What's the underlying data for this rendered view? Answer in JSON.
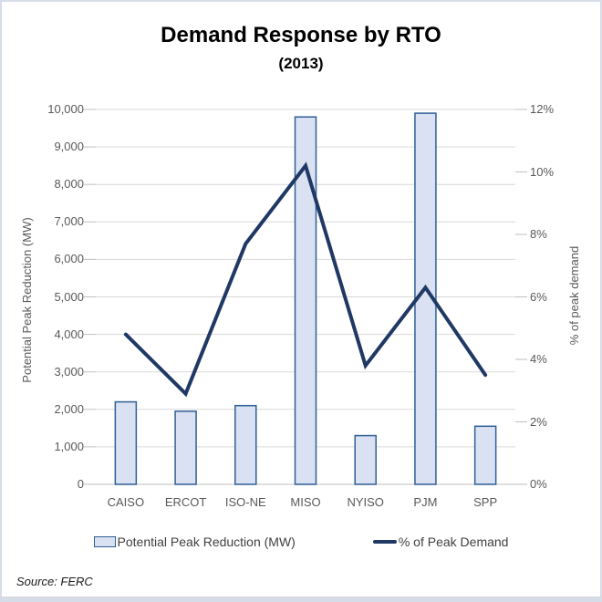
{
  "page": {
    "title": "Demand Response by RTO",
    "subtitle": "(2013)",
    "source": "Source: FERC"
  },
  "chart_data": {
    "type": "combo-bar-line",
    "categories": [
      "CAISO",
      "ERCOT",
      "ISO-NE",
      "MISO",
      "NYISO",
      "PJM",
      "SPP"
    ],
    "series": [
      {
        "name": "Potential Peak Reduction (MW)",
        "type": "bar",
        "axis": "left",
        "values": [
          2200,
          1950,
          2100,
          9800,
          1300,
          9900,
          1550
        ]
      },
      {
        "name": "% of Peak Demand",
        "type": "line",
        "axis": "right",
        "values": [
          4.8,
          2.9,
          7.7,
          10.2,
          3.8,
          6.3,
          3.5
        ]
      }
    ],
    "left_axis": {
      "label": "Potential Peak Reduction (MW)",
      "min": 0,
      "max": 10000,
      "step": 1000,
      "ticks": [
        "0",
        "1,000",
        "2,000",
        "3,000",
        "4,000",
        "5,000",
        "6,000",
        "7,000",
        "8,000",
        "9,000",
        "10,000"
      ]
    },
    "right_axis": {
      "label": "% of peak demand",
      "min": 0,
      "max": 12,
      "step": 2,
      "ticks": [
        "0%",
        "2%",
        "4%",
        "6%",
        "8%",
        "10%",
        "12%"
      ]
    },
    "grid": true,
    "legend_position": "bottom",
    "legend": [
      "Potential Peak Reduction (MW)",
      "% of Peak Demand"
    ]
  },
  "colors": {
    "bar_fill": "#D9E1F2",
    "bar_border": "#2F5F95",
    "line": "#1F3864",
    "gridline": "#D9D9D9",
    "axis_line": "#BFBFBF",
    "tick_text": "#595959",
    "legend_text": "#404040",
    "frame_border": "#D6DCE8",
    "title_text": "#000000"
  }
}
